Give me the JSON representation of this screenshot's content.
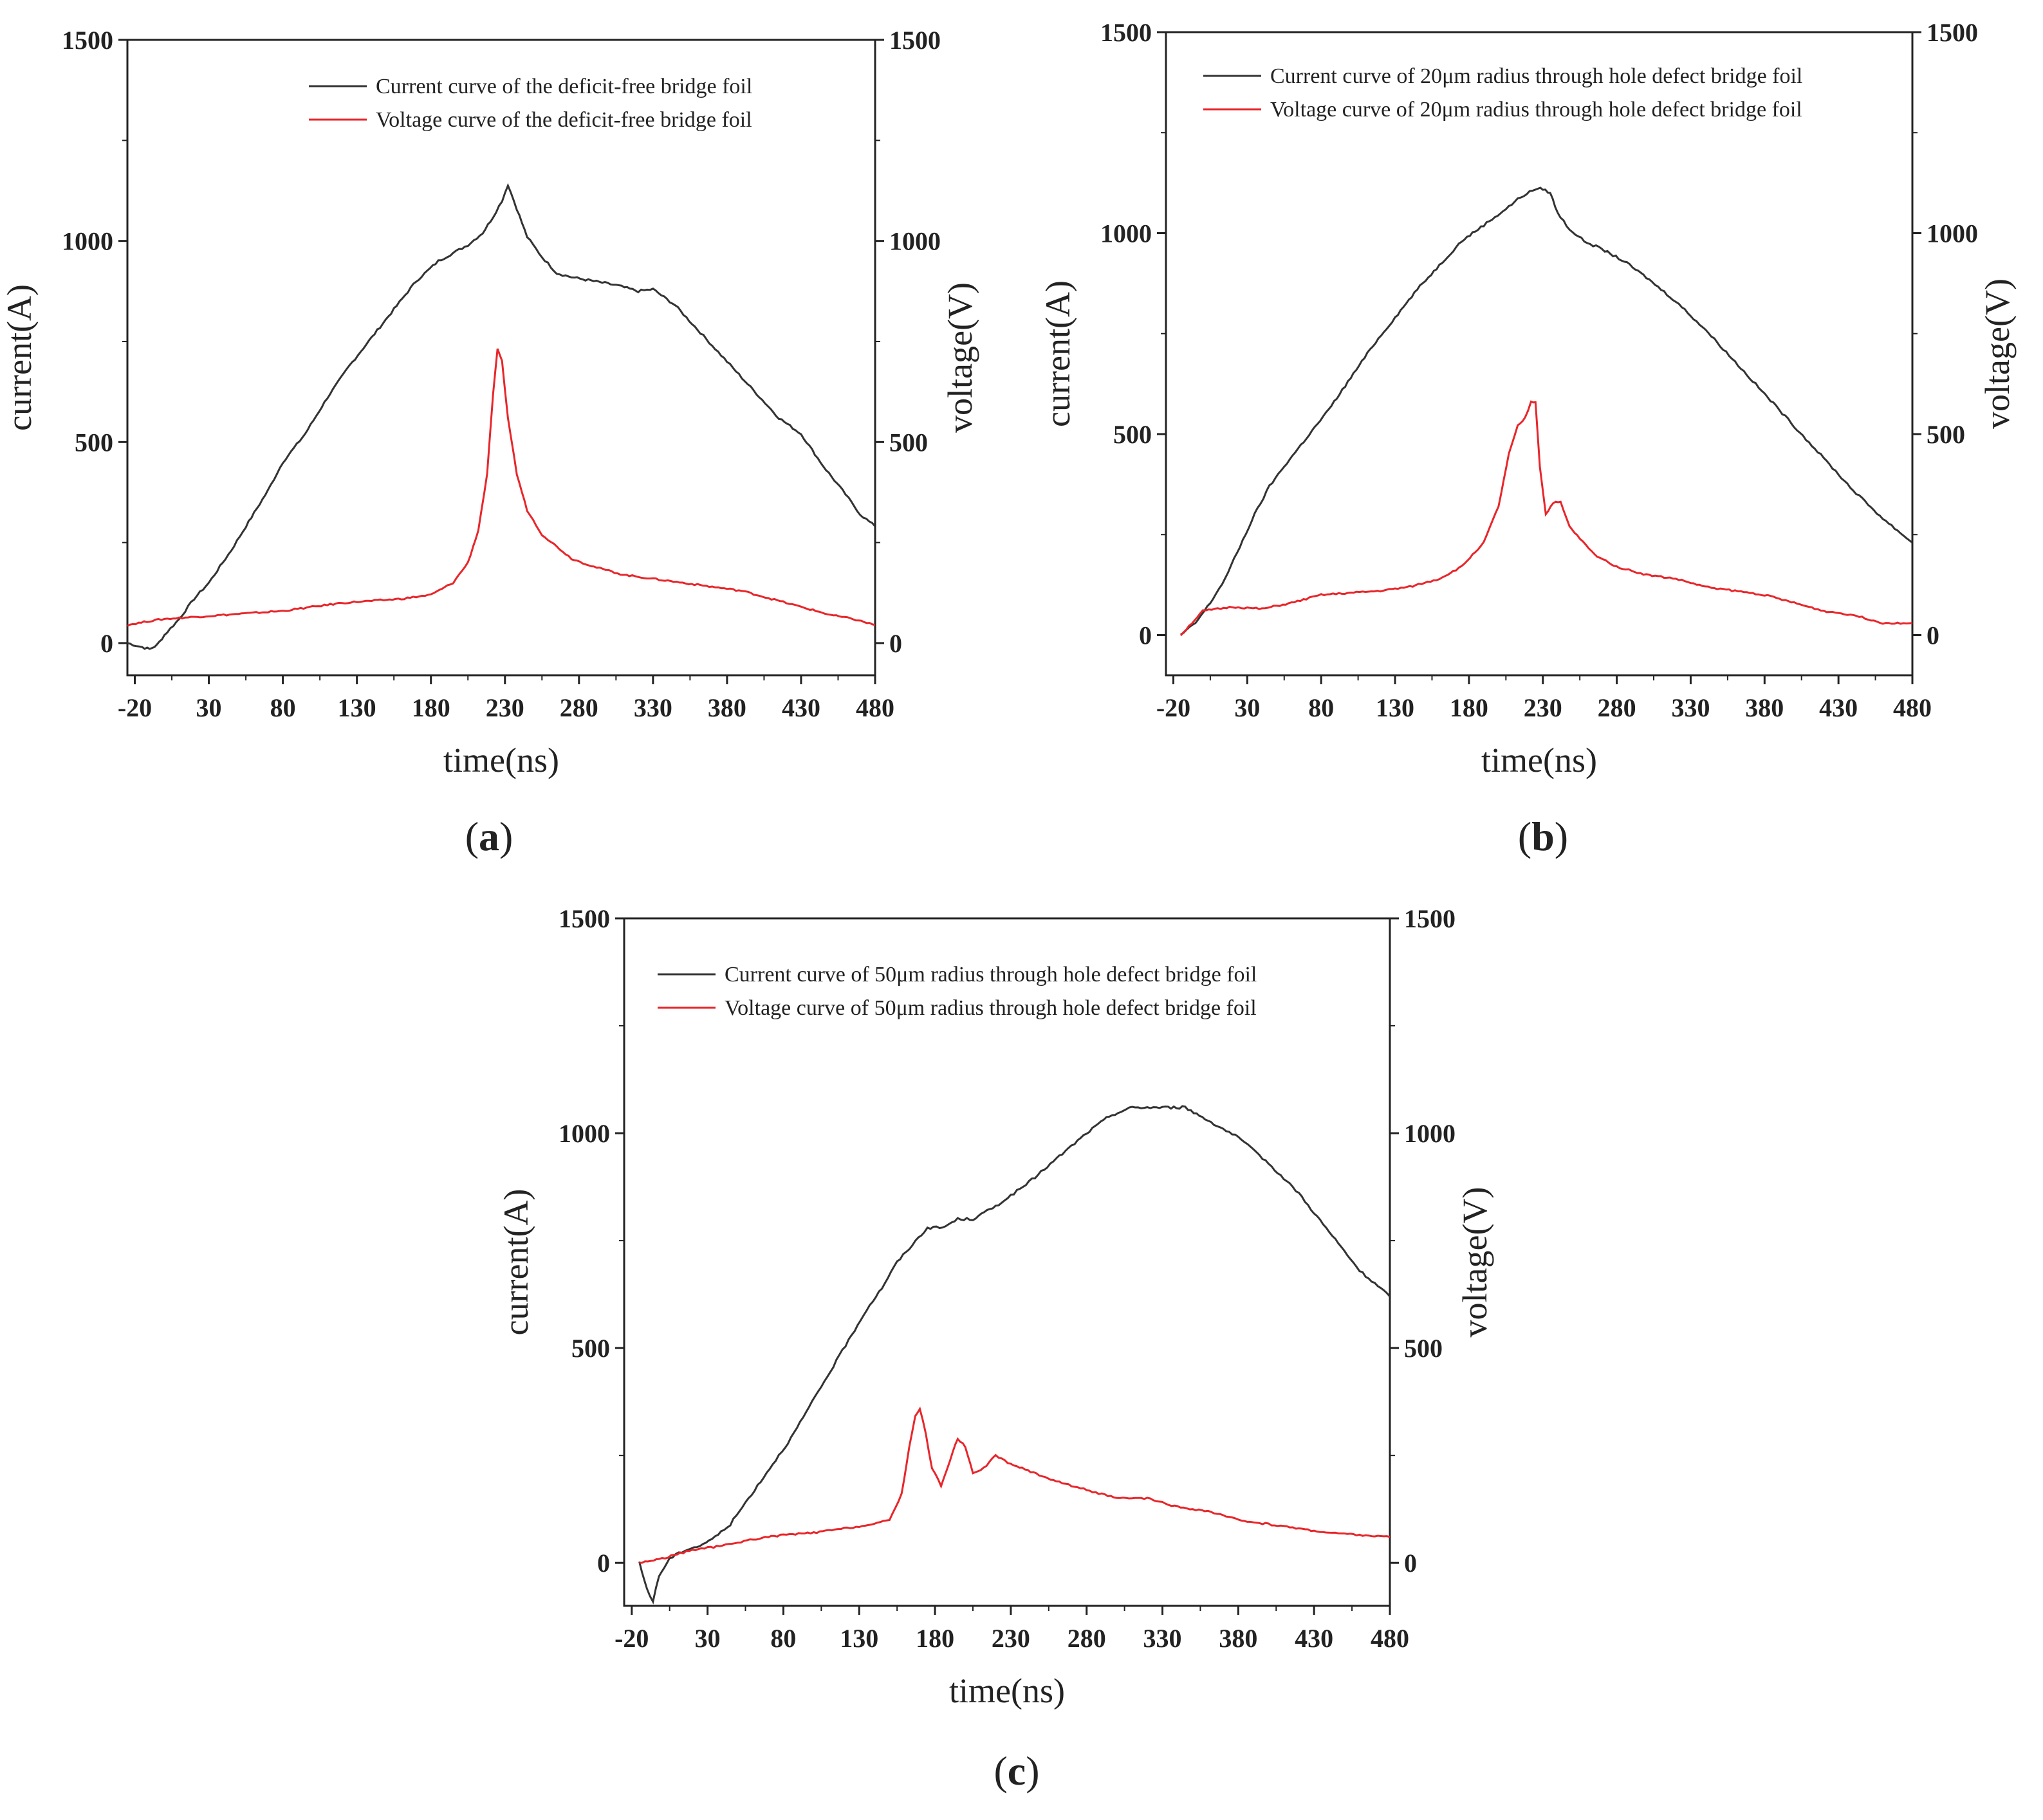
{
  "colors": {
    "current": "#333333",
    "voltage": "#e8262a",
    "axis": "#222222"
  },
  "chart_data": [
    {
      "type": "line",
      "panel_label": "a",
      "xlabel": "time(ns)",
      "ylabel_left": "current(A)",
      "ylabel_right": "voltage(V)",
      "xlim": [
        -25,
        480
      ],
      "ylim": [
        -80,
        1500
      ],
      "x_ticks": [
        "-20",
        "30",
        "80",
        "130",
        "180",
        "230",
        "280",
        "330",
        "380",
        "430",
        "480"
      ],
      "y_ticks": [
        "0",
        "500",
        "1000",
        "1500"
      ],
      "legend_position": "top-right",
      "series": [
        {
          "name": "Current curve of the deficit-free bridge foil",
          "color": "#333333",
          "x": [
            -25,
            -15,
            -10,
            -5,
            0,
            10,
            20,
            30,
            45,
            55,
            70,
            80,
            95,
            110,
            125,
            140,
            155,
            170,
            185,
            195,
            205,
            215,
            222,
            228,
            232,
            238,
            245,
            255,
            265,
            275,
            290,
            305,
            320,
            330,
            345,
            360,
            380,
            400,
            415,
            430,
            445,
            460,
            470,
            480
          ],
          "y": [
            0,
            -10,
            -15,
            -5,
            20,
            60,
            110,
            150,
            230,
            290,
            380,
            450,
            520,
            610,
            690,
            760,
            830,
            900,
            950,
            970,
            990,
            1020,
            1060,
            1100,
            1140,
            1080,
            1010,
            960,
            920,
            910,
            900,
            890,
            875,
            880,
            840,
            780,
            700,
            620,
            560,
            520,
            440,
            370,
            320,
            290
          ]
        },
        {
          "name": "Voltage curve of the deficit-free bridge foil",
          "color": "#e8262a",
          "x": [
            -25,
            -10,
            0,
            20,
            40,
            60,
            80,
            100,
            120,
            140,
            160,
            180,
            195,
            205,
            212,
            218,
            222,
            225,
            228,
            232,
            238,
            245,
            255,
            265,
            275,
            290,
            310,
            330,
            350,
            370,
            390,
            410,
            430,
            450,
            465,
            480
          ],
          "y": [
            45,
            55,
            60,
            65,
            70,
            75,
            80,
            90,
            100,
            105,
            110,
            120,
            150,
            200,
            280,
            420,
            620,
            730,
            700,
            560,
            420,
            330,
            270,
            240,
            210,
            190,
            170,
            160,
            150,
            140,
            130,
            110,
            90,
            70,
            60,
            45
          ]
        }
      ]
    },
    {
      "type": "line",
      "panel_label": "b",
      "xlabel": "time(ns)",
      "ylabel_left": "current(A)",
      "ylabel_right": "voltage(V)",
      "xlim": [
        -25,
        480
      ],
      "ylim": [
        -100,
        1500
      ],
      "x_ticks": [
        "-20",
        "30",
        "80",
        "130",
        "180",
        "230",
        "280",
        "330",
        "380",
        "430",
        "480"
      ],
      "y_ticks": [
        "0",
        "500",
        "1000",
        "1500"
      ],
      "legend_position": "top-right",
      "series": [
        {
          "name": "Current curve of 20μm radius through hole defect bridge foil",
          "color": "#333333",
          "x": [
            -15,
            -5,
            5,
            15,
            25,
            35,
            45,
            55,
            70,
            85,
            100,
            115,
            130,
            145,
            160,
            175,
            190,
            205,
            215,
            225,
            230,
            235,
            240,
            248,
            258,
            270,
            285,
            300,
            320,
            340,
            360,
            380,
            400,
            420,
            440,
            460,
            480
          ],
          "y": [
            0,
            30,
            80,
            140,
            220,
            300,
            370,
            420,
            490,
            560,
            640,
            720,
            790,
            860,
            920,
            980,
            1020,
            1060,
            1090,
            1110,
            1110,
            1100,
            1050,
            1010,
            980,
            960,
            930,
            890,
            830,
            760,
            680,
            600,
            520,
            440,
            360,
            290,
            230
          ]
        },
        {
          "name": "Voltage curve of 20μm radius through hole defect bridge foil",
          "color": "#e8262a",
          "x": [
            -15,
            0,
            20,
            40,
            60,
            80,
            100,
            120,
            140,
            160,
            175,
            190,
            200,
            207,
            213,
            218,
            222,
            225,
            228,
            232,
            237,
            242,
            248,
            255,
            265,
            280,
            300,
            320,
            340,
            360,
            380,
            400,
            420,
            440,
            460,
            480
          ],
          "y": [
            0,
            60,
            70,
            65,
            80,
            100,
            105,
            110,
            120,
            140,
            170,
            230,
            320,
            450,
            520,
            540,
            580,
            580,
            420,
            300,
            330,
            330,
            270,
            240,
            200,
            170,
            150,
            140,
            120,
            110,
            100,
            80,
            60,
            50,
            30,
            30
          ]
        }
      ]
    },
    {
      "type": "line",
      "panel_label": "c",
      "xlabel": "time(ns)",
      "ylabel_left": "current(A)",
      "ylabel_right": "voltage(V)",
      "xlim": [
        -25,
        480
      ],
      "ylim": [
        -100,
        1500
      ],
      "x_ticks": [
        "-20",
        "30",
        "80",
        "130",
        "180",
        "230",
        "280",
        "330",
        "380",
        "430",
        "480"
      ],
      "y_ticks": [
        "0",
        "500",
        "1000",
        "1500"
      ],
      "legend_position": "top-left",
      "series": [
        {
          "name": "Current curve of 50μm radius through hole defect bridge foil",
          "color": "#333333",
          "x": [
            -15,
            -10,
            -6,
            -2,
            5,
            15,
            25,
            35,
            45,
            55,
            65,
            75,
            85,
            95,
            105,
            115,
            125,
            135,
            145,
            155,
            165,
            175,
            185,
            195,
            205,
            220,
            240,
            260,
            280,
            295,
            310,
            330,
            345,
            360,
            380,
            400,
            420,
            440,
            460,
            480
          ],
          "y": [
            0,
            -60,
            -90,
            -30,
            10,
            30,
            40,
            60,
            90,
            140,
            190,
            240,
            290,
            350,
            410,
            470,
            530,
            590,
            640,
            700,
            740,
            780,
            780,
            800,
            800,
            830,
            880,
            940,
            1000,
            1040,
            1060,
            1060,
            1060,
            1030,
            990,
            930,
            860,
            770,
            680,
            620
          ]
        },
        {
          "name": "Voltage curve of 50μm radius through hole defect bridge foil",
          "color": "#e8262a",
          "x": [
            -15,
            0,
            20,
            40,
            60,
            80,
            100,
            120,
            140,
            150,
            158,
            163,
            167,
            170,
            174,
            178,
            184,
            190,
            195,
            200,
            205,
            212,
            220,
            230,
            245,
            260,
            280,
            300,
            320,
            340,
            360,
            380,
            400,
            420,
            440,
            460,
            480
          ],
          "y": [
            0,
            10,
            30,
            40,
            55,
            65,
            70,
            80,
            90,
            100,
            160,
            270,
            340,
            360,
            300,
            220,
            180,
            240,
            290,
            270,
            210,
            220,
            250,
            230,
            210,
            190,
            170,
            150,
            150,
            130,
            120,
            100,
            90,
            80,
            70,
            65,
            60
          ]
        }
      ]
    }
  ]
}
